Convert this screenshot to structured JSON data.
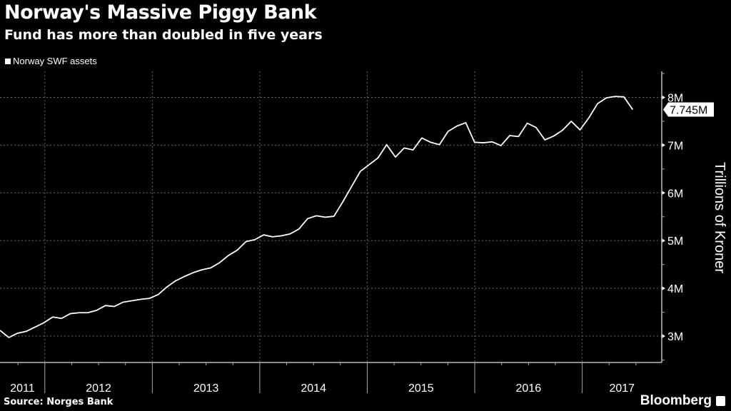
{
  "header": {
    "title": "Norway's Massive Piggy Bank",
    "subtitle": "Fund has more than doubled in five years"
  },
  "footer": {
    "source": "Source: Norges Bank",
    "brand": "Bloomberg"
  },
  "chart_data": {
    "type": "line",
    "title": "Norway's Massive Piggy Bank",
    "subtitle": "Fund has more than doubled in five years",
    "ylabel": "Trillions of Kroner",
    "xlabel": "",
    "legend": [
      {
        "name": "Norway SWF assets",
        "color": "#ffffff"
      }
    ],
    "legend_placement": "top-left",
    "grid": true,
    "ylim": [
      2.5,
      8.55
    ],
    "yticks": [
      3,
      4,
      5,
      6,
      7,
      8
    ],
    "ytick_labels": [
      "3M",
      "4M",
      "5M",
      "6M",
      "7M",
      "8M"
    ],
    "xlim": [
      2011.583,
      2017.74
    ],
    "x_start": 2011.583,
    "x_end": 2017.47,
    "xticks": [
      2011,
      2012,
      2013,
      2014,
      2015,
      2016,
      2017
    ],
    "xtick_labels": [
      "2011",
      "2012",
      "2013",
      "2014",
      "2015",
      "2016",
      "2017"
    ],
    "last_value_label": "7.745M",
    "series": [
      {
        "name": "Norway SWF assets",
        "values": [
          3.12,
          2.97,
          3.06,
          3.1,
          3.19,
          3.28,
          3.4,
          3.37,
          3.47,
          3.49,
          3.49,
          3.54,
          3.64,
          3.62,
          3.71,
          3.74,
          3.77,
          3.79,
          3.87,
          4.03,
          4.16,
          4.25,
          4.33,
          4.39,
          4.43,
          4.54,
          4.69,
          4.8,
          4.98,
          5.02,
          5.12,
          5.08,
          5.1,
          5.14,
          5.24,
          5.46,
          5.52,
          5.49,
          5.51,
          5.81,
          6.13,
          6.45,
          6.59,
          6.73,
          7.01,
          6.75,
          6.94,
          6.9,
          7.15,
          7.06,
          7.01,
          7.29,
          7.4,
          7.47,
          7.06,
          7.05,
          7.07,
          6.99,
          7.2,
          7.18,
          7.46,
          7.37,
          7.11,
          7.19,
          7.31,
          7.5,
          7.32,
          7.57,
          7.87,
          7.99,
          8.02,
          8.01,
          7.745
        ]
      }
    ]
  }
}
